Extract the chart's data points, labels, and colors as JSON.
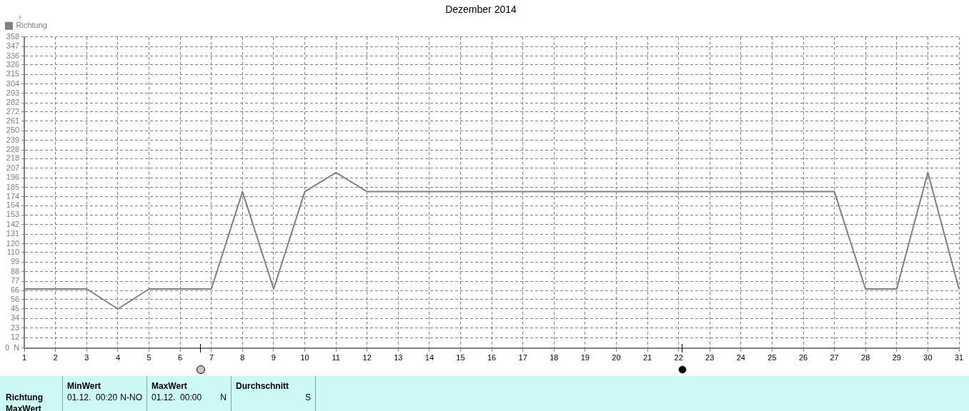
{
  "chart_data": {
    "type": "line",
    "title": "Dezember 2014",
    "ylabel": "°",
    "x": [
      1,
      2,
      3,
      4,
      5,
      6,
      7,
      8,
      9,
      10,
      11,
      12,
      13,
      14,
      15,
      16,
      17,
      18,
      19,
      20,
      21,
      22,
      23,
      24,
      25,
      26,
      27,
      28,
      29,
      30,
      31
    ],
    "series": [
      {
        "name": "Richtung",
        "color": "#808080",
        "values": [
          68,
          68,
          68,
          45,
          68,
          68,
          68,
          180,
          68,
          180,
          202,
          180,
          180,
          180,
          180,
          180,
          180,
          180,
          180,
          180,
          180,
          180,
          180,
          180,
          180,
          180,
          180,
          68,
          68,
          202,
          68
        ]
      }
    ],
    "xlim": [
      1,
      31
    ],
    "xticks": [
      1,
      2,
      3,
      4,
      5,
      6,
      7,
      8,
      9,
      10,
      11,
      12,
      13,
      14,
      15,
      16,
      17,
      18,
      19,
      20,
      21,
      22,
      23,
      24,
      25,
      26,
      27,
      28,
      29,
      30,
      31
    ],
    "ylim": [
      0,
      358
    ],
    "yticks": [
      {
        "value": 0,
        "label": "0  N"
      },
      12,
      23,
      34,
      45,
      56,
      66,
      77,
      88,
      99,
      110,
      120,
      131,
      142,
      153,
      164,
      174,
      185,
      196,
      207,
      218,
      228,
      239,
      250,
      261,
      272,
      282,
      293,
      304,
      315,
      326,
      336,
      347,
      358
    ],
    "grid": true,
    "legend": "top left",
    "marker": "none",
    "line_style": "solid",
    "annotations": [
      "Richtung",
      "MaxWert",
      "MinWert",
      "01.12.  00:20",
      "N-NO",
      "MaxWert",
      "01.12.  00:00",
      "N",
      "Durchschnitt",
      "S"
    ]
  }
}
